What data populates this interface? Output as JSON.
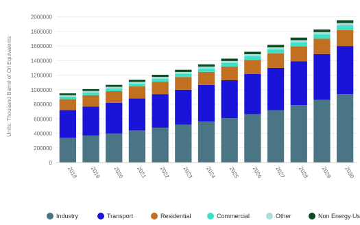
{
  "chart_data": {
    "type": "bar",
    "stacked": true,
    "title": "",
    "xlabel": "",
    "ylabel": "Units: Thousand Barrel of Oil Equivalents",
    "ylim": [
      0,
      2100000
    ],
    "yticks": [
      0,
      200000,
      400000,
      600000,
      800000,
      1000000,
      1200000,
      1400000,
      1600000,
      1800000,
      2000000
    ],
    "ytick_labels": [
      "0",
      "200000",
      "400000",
      "600000",
      "800000",
      "1000000",
      "1200000",
      "1400000",
      "1600000",
      "1800000",
      "2000000"
    ],
    "grid": true,
    "legend_position": "bottom",
    "categories": [
      "2018",
      "2019",
      "2020",
      "2021",
      "2022",
      "2023",
      "2024",
      "2025",
      "2026",
      "2027",
      "2028",
      "2029",
      "2030"
    ],
    "series": [
      {
        "name": "Industry",
        "color": "#4a7585",
        "values": [
          340000,
          370000,
          400000,
          440000,
          480000,
          520000,
          565000,
          610000,
          665000,
          720000,
          790000,
          860000,
          940000
        ]
      },
      {
        "name": "Transport",
        "color": "#1a14d9",
        "values": [
          380000,
          400000,
          420000,
          440000,
          460000,
          480000,
          500000,
          520000,
          550000,
          580000,
          600000,
          630000,
          660000
        ]
      },
      {
        "name": "Residential",
        "color": "#c07020",
        "values": [
          150000,
          155000,
          160000,
          165000,
          170000,
          175000,
          180000,
          190000,
          195000,
          200000,
          205000,
          210000,
          220000
        ]
      },
      {
        "name": "Commercial",
        "color": "#3ee0c8",
        "values": [
          35000,
          37000,
          38000,
          40000,
          42000,
          44000,
          46000,
          48000,
          50000,
          53000,
          56000,
          60000,
          64000
        ]
      },
      {
        "name": "Other",
        "color": "#a8ddd8",
        "values": [
          20000,
          21000,
          22000,
          23000,
          24000,
          25000,
          26000,
          27000,
          28000,
          29000,
          30000,
          31000,
          32000
        ]
      },
      {
        "name": "Non Energy Use",
        "color": "#0c4a24",
        "values": [
          25000,
          26000,
          27000,
          28000,
          29000,
          30000,
          31000,
          32000,
          33000,
          34000,
          35000,
          36000,
          38000
        ]
      }
    ]
  }
}
